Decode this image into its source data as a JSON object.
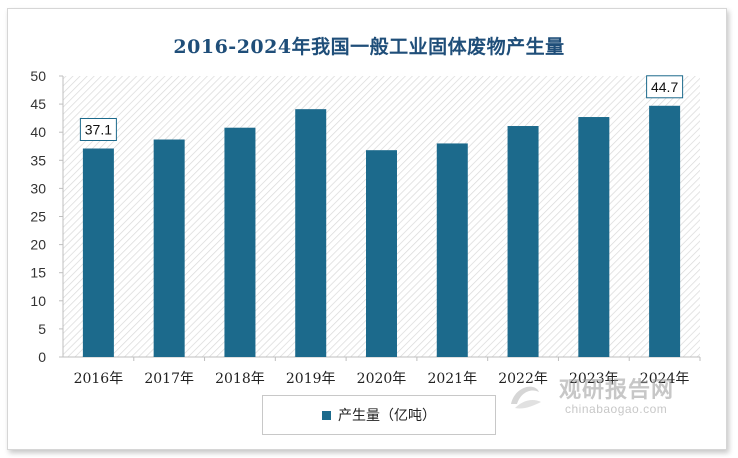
{
  "chart_data": {
    "type": "bar",
    "title": "2016-2024年我国一般工业固体废物产生量",
    "categories": [
      "2016年",
      "2017年",
      "2018年",
      "2019年",
      "2020年",
      "2021年",
      "2022年",
      "2023年",
      "2024年"
    ],
    "series": [
      {
        "name": "产生量（亿吨）",
        "values": [
          37.1,
          38.7,
          40.8,
          44.1,
          36.8,
          38.0,
          41.1,
          42.7,
          44.7
        ]
      }
    ],
    "data_labels": {
      "2016年": "37.1",
      "2024年": "44.7"
    },
    "ylim": [
      0,
      50
    ],
    "yticks": [
      0,
      5,
      10,
      15,
      20,
      25,
      30,
      35,
      40,
      45,
      50
    ],
    "bar_color": "#1c6a8c",
    "grid": false,
    "legend_position": "bottom"
  },
  "watermark": {
    "cn": "观研报告网",
    "en": "chinabaogao.com"
  }
}
